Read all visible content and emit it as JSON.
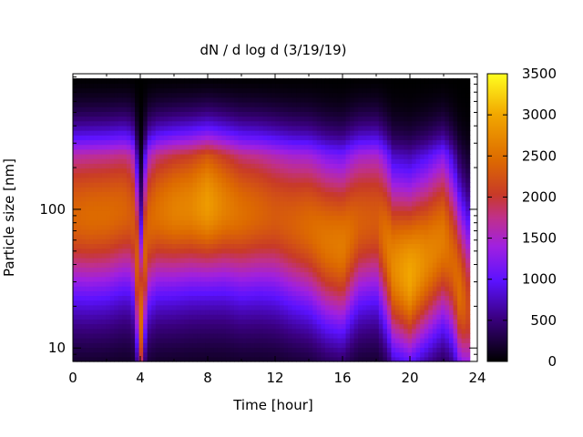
{
  "chart_data": {
    "type": "heatmap",
    "title": "dN / d log d (3/19/19)",
    "xlabel": "Time [hour]",
    "ylabel": "Particle size [nm]",
    "xlim": [
      0,
      24
    ],
    "ylim": [
      8,
      950
    ],
    "yscale": "log",
    "x_ticks": [
      "0",
      "4",
      "8",
      "12",
      "16",
      "20",
      "24"
    ],
    "x_tick_values": [
      0,
      4,
      8,
      12,
      16,
      20,
      24
    ],
    "y_ticks": [
      "10",
      "100"
    ],
    "y_tick_values": [
      10,
      100
    ],
    "colorbar": {
      "range": [
        0,
        3500
      ],
      "ticks": [
        "0",
        "500",
        "1000",
        "1500",
        "2000",
        "2500",
        "3000",
        "3500"
      ],
      "tick_values": [
        0,
        500,
        1000,
        1500,
        2000,
        2500,
        3000,
        3500
      ],
      "colormap": "black-purple-red-orange-yellow"
    },
    "time_hours": [
      0,
      1,
      2,
      3,
      3.5,
      4,
      4.5,
      5,
      6,
      7,
      8,
      9,
      10,
      11,
      12,
      13,
      14,
      15,
      16,
      17,
      18,
      19,
      20,
      21,
      22,
      22.5,
      23,
      23.5
    ],
    "mode_diameter_nm": [
      90,
      90,
      92,
      100,
      95,
      10,
      80,
      95,
      100,
      105,
      110,
      105,
      95,
      95,
      90,
      80,
      75,
      60,
      55,
      80,
      85,
      40,
      35,
      45,
      60,
      45,
      25,
      20
    ],
    "peak_concentration": [
      2400,
      2450,
      2450,
      2400,
      2300,
      2300,
      2400,
      2500,
      2650,
      2700,
      2900,
      2650,
      2500,
      2400,
      2300,
      2350,
      2450,
      2550,
      2600,
      2350,
      2300,
      2700,
      2950,
      2700,
      2600,
      2400,
      2400,
      2000
    ]
  }
}
